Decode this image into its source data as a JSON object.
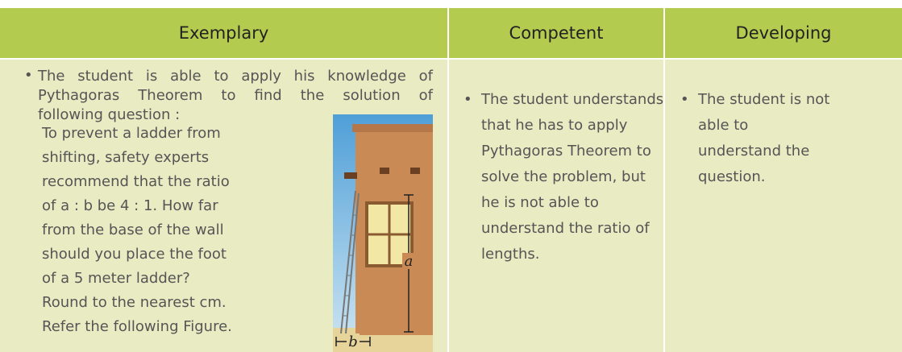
{
  "table": {
    "headers": [
      "Exemplary",
      "Competent",
      "Developing"
    ],
    "exemplary": {
      "intro": [
        "The student is able to apply his knowledge of",
        "Pythagoras Theorem to find the solution of",
        "following question :"
      ],
      "question": [
        "To prevent a ladder from",
        "shifting, safety experts",
        "recommend that the ratio",
        "of a : b be 4 : 1. How far",
        "from the base of the wall",
        "should you place the foot",
        "of a 5 meter ladder?",
        "Round to the nearest cm.",
        "Refer the following Figure."
      ],
      "figure_labels": {
        "a": "a",
        "b": "b"
      }
    },
    "competent": [
      "The student understands",
      "that he has to apply",
      "Pythagoras Theorem to",
      "solve the problem, but",
      "he is not able to",
      "understand the ratio of",
      "lengths."
    ],
    "developing": [
      "The student is not",
      "able to",
      "understand the",
      "question."
    ]
  }
}
